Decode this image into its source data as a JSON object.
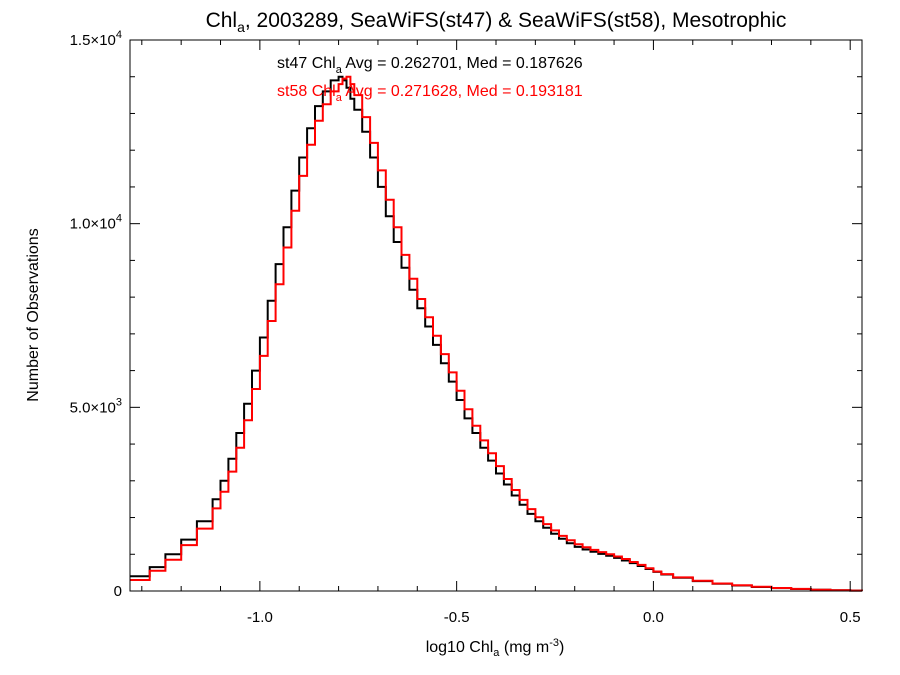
{
  "chart_data": {
    "type": "line",
    "step": true,
    "title": {
      "pre": "Chl",
      "sub": "a",
      "post": ", 2003289, SeaWiFS(st47) & SeaWiFS(st58), Mesotrophic"
    },
    "xlabel": {
      "pre": "log10 Chl",
      "sub": "a",
      "post": " (mg m",
      "sup": "-3",
      "tail": ")"
    },
    "ylabel": "Number of Observations",
    "xlim": [
      -1.33,
      0.53
    ],
    "ylim": [
      0,
      15000
    ],
    "xticks": [
      {
        "value": -1.0,
        "label": "-1.0"
      },
      {
        "value": -0.5,
        "label": "-0.5"
      },
      {
        "value": 0.0,
        "label": "0.0"
      },
      {
        "value": 0.5,
        "label": "0.5"
      }
    ],
    "yticks": [
      {
        "value": 0,
        "mant": "0",
        "exp": ""
      },
      {
        "value": 5000,
        "mant": "5.0×10",
        "exp": "3"
      },
      {
        "value": 10000,
        "mant": "1.0×10",
        "exp": "4"
      },
      {
        "value": 15000,
        "mant": "1.5×10",
        "exp": "4"
      }
    ],
    "grid": false,
    "series": [
      {
        "name": "st47",
        "color": "#000000",
        "label": {
          "pre": "st47 Chl",
          "sub": "a",
          "post": " Avg = 0.262701, Med = 0.187626"
        },
        "x": [
          -1.33,
          -1.28,
          -1.24,
          -1.2,
          -1.16,
          -1.12,
          -1.1,
          -1.08,
          -1.06,
          -1.04,
          -1.02,
          -1.0,
          -0.98,
          -0.96,
          -0.94,
          -0.92,
          -0.9,
          -0.88,
          -0.86,
          -0.84,
          -0.82,
          -0.8,
          -0.79,
          -0.78,
          -0.77,
          -0.76,
          -0.74,
          -0.72,
          -0.7,
          -0.68,
          -0.66,
          -0.64,
          -0.62,
          -0.6,
          -0.58,
          -0.56,
          -0.54,
          -0.52,
          -0.5,
          -0.48,
          -0.46,
          -0.44,
          -0.42,
          -0.4,
          -0.38,
          -0.36,
          -0.34,
          -0.32,
          -0.3,
          -0.28,
          -0.26,
          -0.24,
          -0.22,
          -0.2,
          -0.18,
          -0.16,
          -0.14,
          -0.12,
          -0.1,
          -0.08,
          -0.06,
          -0.04,
          -0.02,
          0.0,
          0.02,
          0.05,
          0.1,
          0.15,
          0.2,
          0.25,
          0.3,
          0.35,
          0.4,
          0.45,
          0.5,
          0.53
        ],
        "y": [
          400,
          650,
          1000,
          1400,
          1900,
          2500,
          3000,
          3600,
          4300,
          5100,
          6000,
          6900,
          7900,
          8900,
          9900,
          10900,
          11800,
          12600,
          13200,
          13600,
          13900,
          14000,
          13900,
          13700,
          13400,
          13100,
          12500,
          11800,
          11000,
          10200,
          9500,
          8800,
          8200,
          7700,
          7200,
          6700,
          6200,
          5700,
          5200,
          4700,
          4300,
          3900,
          3550,
          3200,
          2900,
          2600,
          2350,
          2100,
          1900,
          1720,
          1560,
          1420,
          1300,
          1200,
          1130,
          1070,
          1010,
          960,
          900,
          830,
          760,
          680,
          600,
          520,
          450,
          360,
          270,
          200,
          150,
          110,
          80,
          55,
          35,
          20,
          10,
          5
        ]
      },
      {
        "name": "st58",
        "color": "#ff0000",
        "label": {
          "pre": "st58 Chl",
          "sub": "a",
          "post": " Avg = 0.271628, Med = 0.193181"
        },
        "x": [
          -1.33,
          -1.28,
          -1.24,
          -1.2,
          -1.16,
          -1.12,
          -1.1,
          -1.08,
          -1.06,
          -1.04,
          -1.02,
          -1.0,
          -0.98,
          -0.96,
          -0.94,
          -0.92,
          -0.9,
          -0.88,
          -0.86,
          -0.84,
          -0.82,
          -0.8,
          -0.79,
          -0.78,
          -0.77,
          -0.76,
          -0.74,
          -0.72,
          -0.7,
          -0.68,
          -0.66,
          -0.64,
          -0.62,
          -0.6,
          -0.58,
          -0.56,
          -0.54,
          -0.52,
          -0.5,
          -0.48,
          -0.46,
          -0.44,
          -0.42,
          -0.4,
          -0.38,
          -0.36,
          -0.34,
          -0.32,
          -0.3,
          -0.28,
          -0.26,
          -0.24,
          -0.22,
          -0.2,
          -0.18,
          -0.16,
          -0.14,
          -0.12,
          -0.1,
          -0.08,
          -0.06,
          -0.04,
          -0.02,
          0.0,
          0.02,
          0.05,
          0.1,
          0.15,
          0.2,
          0.25,
          0.3,
          0.35,
          0.4,
          0.45,
          0.5,
          0.53
        ],
        "y": [
          300,
          550,
          850,
          1250,
          1700,
          2250,
          2700,
          3250,
          3900,
          4650,
          5500,
          6400,
          7350,
          8350,
          9350,
          10350,
          11300,
          12150,
          12800,
          13250,
          13600,
          13800,
          13950,
          14000,
          13800,
          13500,
          12900,
          12200,
          11450,
          10650,
          9900,
          9150,
          8500,
          7950,
          7450,
          6950,
          6450,
          5950,
          5450,
          4950,
          4500,
          4100,
          3750,
          3400,
          3050,
          2750,
          2480,
          2230,
          2010,
          1820,
          1650,
          1500,
          1380,
          1270,
          1190,
          1120,
          1060,
          1000,
          940,
          870,
          790,
          710,
          620,
          530,
          460,
          370,
          280,
          205,
          155,
          115,
          82,
          57,
          36,
          21,
          10,
          5
        ]
      }
    ]
  }
}
